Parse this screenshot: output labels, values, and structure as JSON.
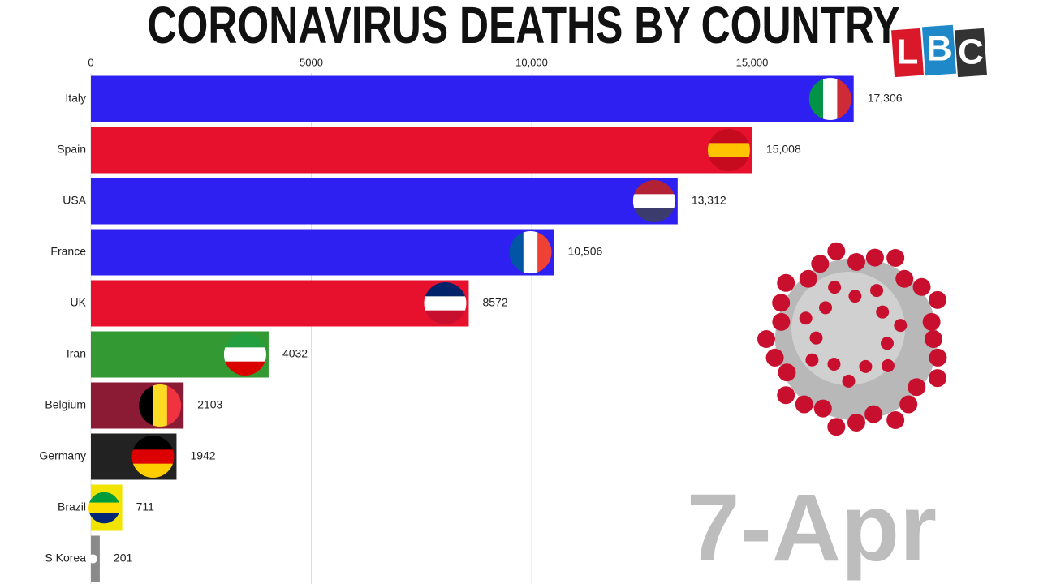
{
  "chart_data": {
    "type": "bar",
    "orientation": "horizontal",
    "title": "CORONAVIRUS DEATHS BY COUNTRY",
    "date_label": "7-Apr",
    "logo": [
      "L",
      "B",
      "C"
    ],
    "categories": [
      "Italy",
      "Spain",
      "USA",
      "France",
      "UK",
      "Iran",
      "Belgium",
      "Germany",
      "Brazil",
      "S Korea"
    ],
    "values": [
      17306,
      15008,
      13312,
      10506,
      8572,
      4032,
      2103,
      1942,
      711,
      201
    ],
    "value_labels": [
      "17,306",
      "15,008",
      "13,312",
      "10,506",
      "8572",
      "4032",
      "2103",
      "1942",
      "711",
      "201"
    ],
    "colors": [
      "#2f20f2",
      "#e8112d",
      "#2f20f2",
      "#2f20f2",
      "#e8112d",
      "#339933",
      "#8b1a35",
      "#222222",
      "#f0e400",
      "#8a8a8a"
    ],
    "xlim": [
      0,
      20000
    ],
    "xticks": [
      0,
      5000,
      {
        "value": 10000,
        "label": "10,000"
      },
      {
        "value": 15000,
        "label": "15,000"
      }
    ],
    "grid": true
  }
}
